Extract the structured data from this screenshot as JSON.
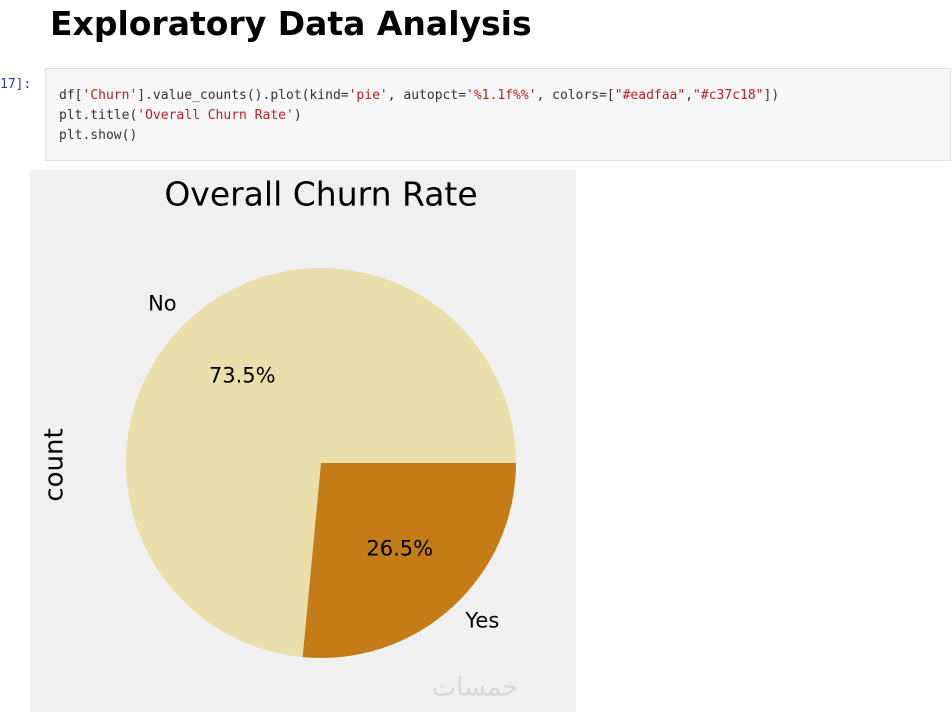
{
  "heading": "Exploratory Data Analysis",
  "cell": {
    "prompt": "17]:",
    "code": [
      [
        {
          "text": "df[",
          "color": "#333333"
        },
        {
          "text": "'Churn'",
          "color": "#ba2121"
        },
        {
          "text": "].value_counts().plot(kind=",
          "color": "#333333"
        },
        {
          "text": "'pie'",
          "color": "#ba2121"
        },
        {
          "text": ", autopct=",
          "color": "#333333"
        },
        {
          "text": "'%1.1f%%'",
          "color": "#ba2121"
        },
        {
          "text": ", colors=[",
          "color": "#333333"
        },
        {
          "text": "\"#eadfaa\"",
          "color": "#ba2121"
        },
        {
          "text": ",",
          "color": "#333333"
        },
        {
          "text": "\"#c37c18\"",
          "color": "#ba2121"
        },
        {
          "text": "])",
          "color": "#333333"
        }
      ],
      [
        {
          "text": "plt.title(",
          "color": "#333333"
        },
        {
          "text": "'Overall Churn Rate'",
          "color": "#ba2121"
        },
        {
          "text": ")",
          "color": "#333333"
        }
      ],
      [
        {
          "text": "plt.show()",
          "color": "#333333"
        }
      ]
    ]
  },
  "chart_data": {
    "type": "pie",
    "title": "Overall Churn Rate",
    "ylabel": "count",
    "categories": [
      "No",
      "Yes"
    ],
    "values": [
      73.5,
      26.5
    ],
    "value_labels": [
      "73.5%",
      "26.5%"
    ],
    "colors": [
      "#eadfaa",
      "#c37c18"
    ]
  },
  "watermark": "خمسات"
}
